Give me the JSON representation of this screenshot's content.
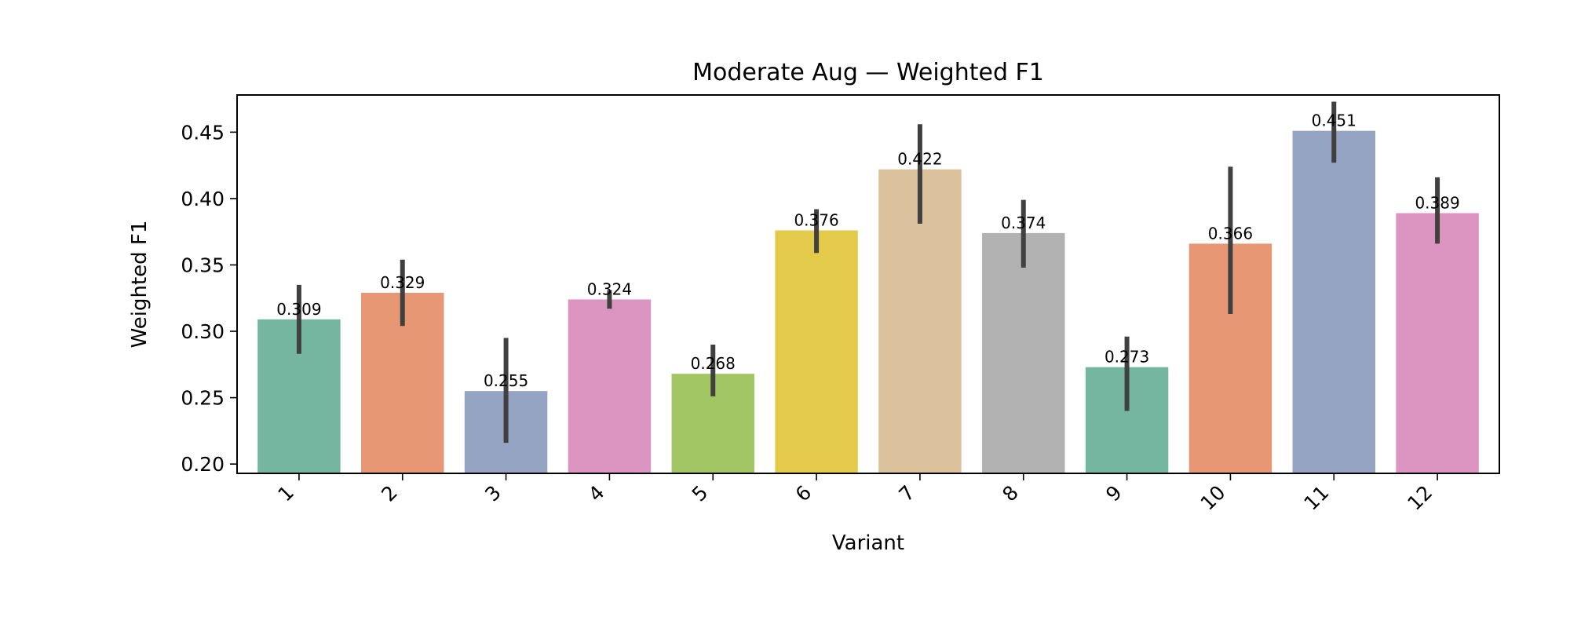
{
  "chart_data": {
    "type": "bar",
    "title": "Moderate Aug — Weighted F1",
    "xlabel": "Variant",
    "ylabel": "Weighted F1",
    "ylim": [
      0.193,
      0.478
    ],
    "yticks": [
      "0.20",
      "0.25",
      "0.30",
      "0.35",
      "0.40",
      "0.45"
    ],
    "categories": [
      "1",
      "2",
      "3",
      "4",
      "5",
      "6",
      "7",
      "8",
      "9",
      "10",
      "11",
      "12"
    ],
    "values": [
      0.309,
      0.329,
      0.255,
      0.324,
      0.268,
      0.376,
      0.422,
      0.374,
      0.273,
      0.366,
      0.451,
      0.389
    ],
    "value_labels": [
      "0.309",
      "0.329",
      "0.255",
      "0.324",
      "0.268",
      "0.376",
      "0.422",
      "0.374",
      "0.273",
      "0.366",
      "0.451",
      "0.389"
    ],
    "error_low": [
      0.283,
      0.304,
      0.216,
      0.317,
      0.251,
      0.359,
      0.381,
      0.348,
      0.24,
      0.313,
      0.427,
      0.366
    ],
    "error_high": [
      0.335,
      0.354,
      0.295,
      0.331,
      0.29,
      0.392,
      0.456,
      0.399,
      0.296,
      0.424,
      0.473,
      0.416
    ],
    "colors": [
      "#75b6a0",
      "#e89774",
      "#94a4c2",
      "#db95c0",
      "#a3c664",
      "#e4ca4b",
      "#dbc29d",
      "#b2b2b2",
      "#75b6a0",
      "#e89774",
      "#94a4c2",
      "#db95c0"
    ],
    "error_color": "#404040",
    "grid": false,
    "legend": "none"
  }
}
